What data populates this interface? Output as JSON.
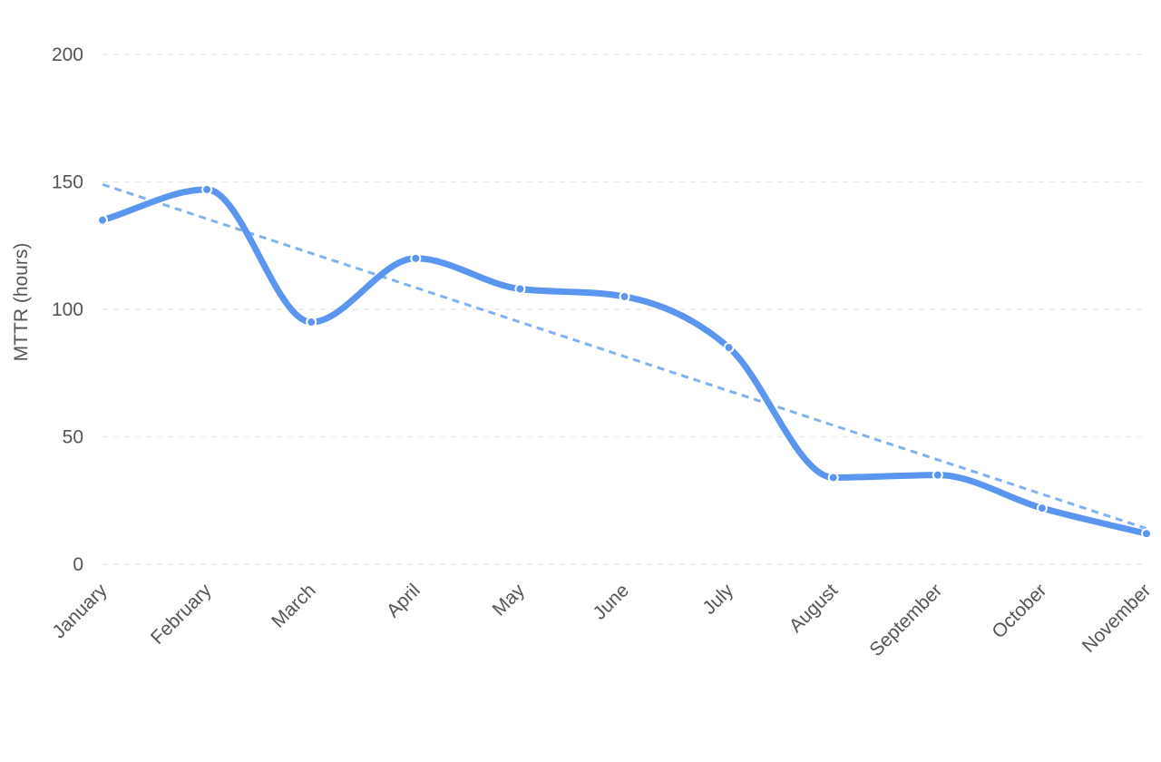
{
  "chart_data": {
    "type": "line",
    "title": "",
    "xlabel": "",
    "ylabel": "MTTR (hours)",
    "categories": [
      "January",
      "February",
      "March",
      "April",
      "May",
      "June",
      "July",
      "August",
      "September",
      "October",
      "November"
    ],
    "series": [
      {
        "values": [
          135,
          147,
          95,
          120,
          108,
          105,
          85,
          34,
          35,
          22,
          12
        ]
      }
    ],
    "trendline": {
      "style": "dashed",
      "start_value": 149,
      "end_value": 14
    },
    "ylim": [
      0,
      200
    ],
    "yticks": [
      0,
      50,
      100,
      150,
      200
    ],
    "grid": true,
    "legend": "none",
    "colors": {
      "series": "#5a96f0",
      "trendline": "#7fb2f0",
      "grid": "#e9e9e9",
      "text": "#555555"
    }
  }
}
